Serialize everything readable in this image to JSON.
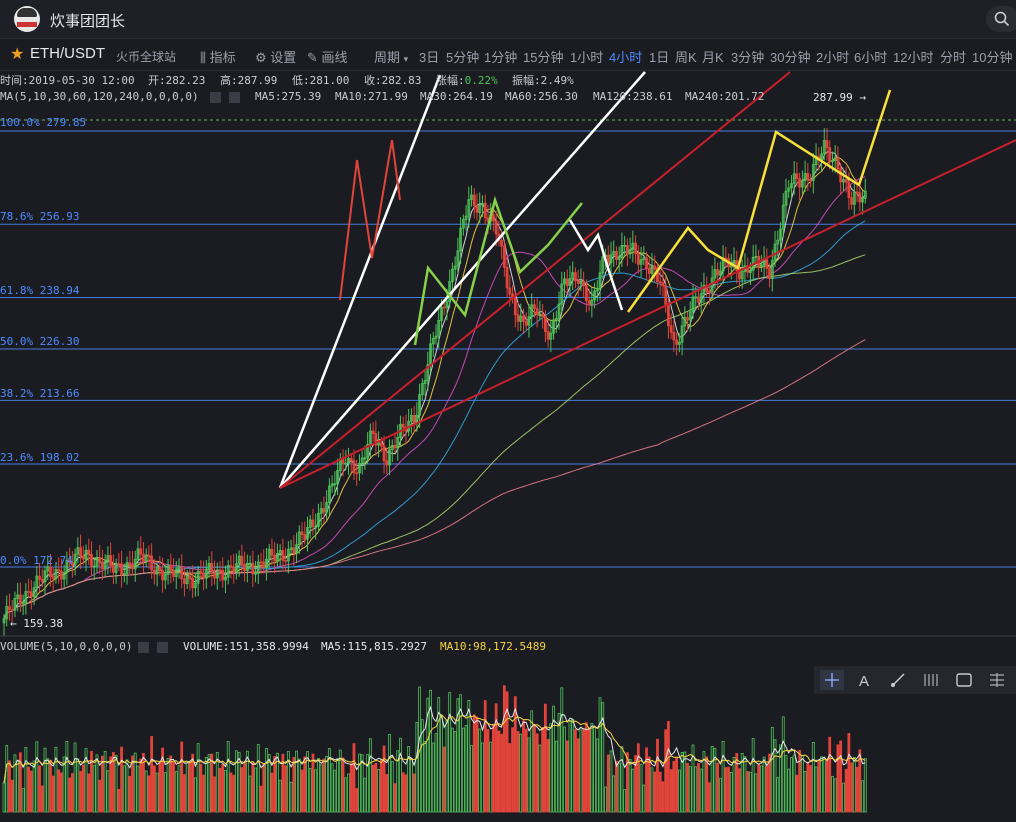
{
  "header": {
    "username": "炊事团团长"
  },
  "toolbar": {
    "symbol": "ETH/USDT",
    "exchange": "火币全球站",
    "indicator_label": "指标",
    "settings_label": "设置",
    "draw_label": "画线",
    "period_label": "周期",
    "periods": [
      "3日",
      "5分钟",
      "1分钟",
      "15分钟",
      "1小时",
      "4小时",
      "1日",
      "周K",
      "月K",
      "3分钟",
      "30分钟",
      "2小时",
      "6小时",
      "12小时",
      "分时",
      "10分钟"
    ],
    "active_period": "4小时"
  },
  "info": {
    "time_label": "时间:",
    "time": "2019-05-30 12:00",
    "open_label": "开:",
    "open": "282.23",
    "high_label": "高:",
    "high": "287.99",
    "low_label": "低:",
    "low": "281.00",
    "close_label": "收:",
    "close": "282.83",
    "change_label": "涨幅:",
    "change": "0.22%",
    "amplitude_label": "振幅:",
    "amplitude": "2.49%"
  },
  "ma": {
    "label": "MA(5,10,30,60,120,240,0,0,0,0)",
    "items": [
      {
        "text": "MA5:275.39",
        "color": "#e6e7ea"
      },
      {
        "text": "MA10:271.99",
        "color": "#f5d442"
      },
      {
        "text": "MA30:264.19",
        "color": "#d44fc2"
      },
      {
        "text": "MA60:256.30",
        "color": "#2fa8e0"
      },
      {
        "text": "MA120:238.61",
        "color": "#a8d26a"
      },
      {
        "text": "MA240:201.72",
        "color": "#e87c8a"
      }
    ]
  },
  "fib_levels": [
    {
      "label": "100.0% 279.85",
      "value": 279.85
    },
    {
      "label": "78.6% 256.93",
      "value": 256.93
    },
    {
      "label": "61.8% 238.94",
      "value": 238.94
    },
    {
      "label": "50.0% 226.30",
      "value": 226.3
    },
    {
      "label": "38.2% 213.66",
      "value": 213.66
    },
    {
      "label": "23.6% 198.02",
      "value": 198.02
    },
    {
      "label": "0.0% 172.74",
      "value": 172.74
    }
  ],
  "price_marks": {
    "last": "287.99 →",
    "low": "← 159.38"
  },
  "volume": {
    "label": "VOLUME(5,10,0,0,0,0)",
    "vol": "VOLUME:151,358.9994",
    "ma5": "MA5:115,815.2927",
    "ma10": "MA10:98,172.5489"
  },
  "colors": {
    "up": "#4fc25a",
    "down": "#e0443a",
    "fib": "#4d8cff",
    "accent": "#4d8cff"
  },
  "draw_tools": [
    "crosshair-icon",
    "text-icon",
    "brush-icon",
    "columns-icon",
    "rect-icon",
    "menu-icon"
  ]
}
